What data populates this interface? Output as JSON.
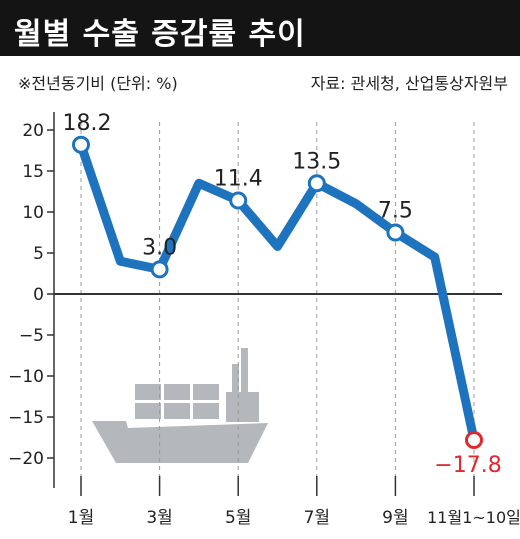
{
  "header": {
    "title": "월별 수출 증감률 추이"
  },
  "notes": {
    "unit": "※전년동기비 (단위: %)",
    "source": "자료: 관세청, 산업통상자원부"
  },
  "colors": {
    "line": "#1e73be",
    "negative_label": "#e0282e",
    "ship": "#b4b8bc",
    "text": "#222222"
  },
  "chart_data": {
    "type": "line",
    "unit_note": "※전년동기비 (단위: %)",
    "source": "자료: 관세청, 산업통상자원부",
    "x_tick_labels": [
      "1월",
      "3월",
      "5월",
      "7월",
      "9월",
      "11월1~10일"
    ],
    "y_tick_labels": [
      "20",
      "15",
      "10",
      "5",
      "0",
      "-5",
      "-10",
      "-15",
      "-20"
    ],
    "ylim": [
      -20,
      20
    ],
    "series": [
      {
        "points": [
          {
            "x": 1,
            "y": 18.2,
            "label": "18.2"
          },
          {
            "x": 2,
            "y": 4.0
          },
          {
            "x": 3,
            "y": 3.0,
            "label": "3.0"
          },
          {
            "x": 4,
            "y": 13.5
          },
          {
            "x": 5,
            "y": 11.4,
            "label": "11.4"
          },
          {
            "x": 6,
            "y": 5.8
          },
          {
            "x": 7,
            "y": 13.5,
            "label": "13.5"
          },
          {
            "x": 8,
            "y": 11.0
          },
          {
            "x": 9,
            "y": 7.5,
            "label": "7.5"
          },
          {
            "x": 10,
            "y": 4.5
          },
          {
            "x": 11,
            "y": -17.8,
            "label": "−17.8"
          }
        ]
      }
    ],
    "grid": "dashed vertical lines at labeled months; solid line at zero",
    "annotation_icon": "cargo-ship-icon"
  }
}
